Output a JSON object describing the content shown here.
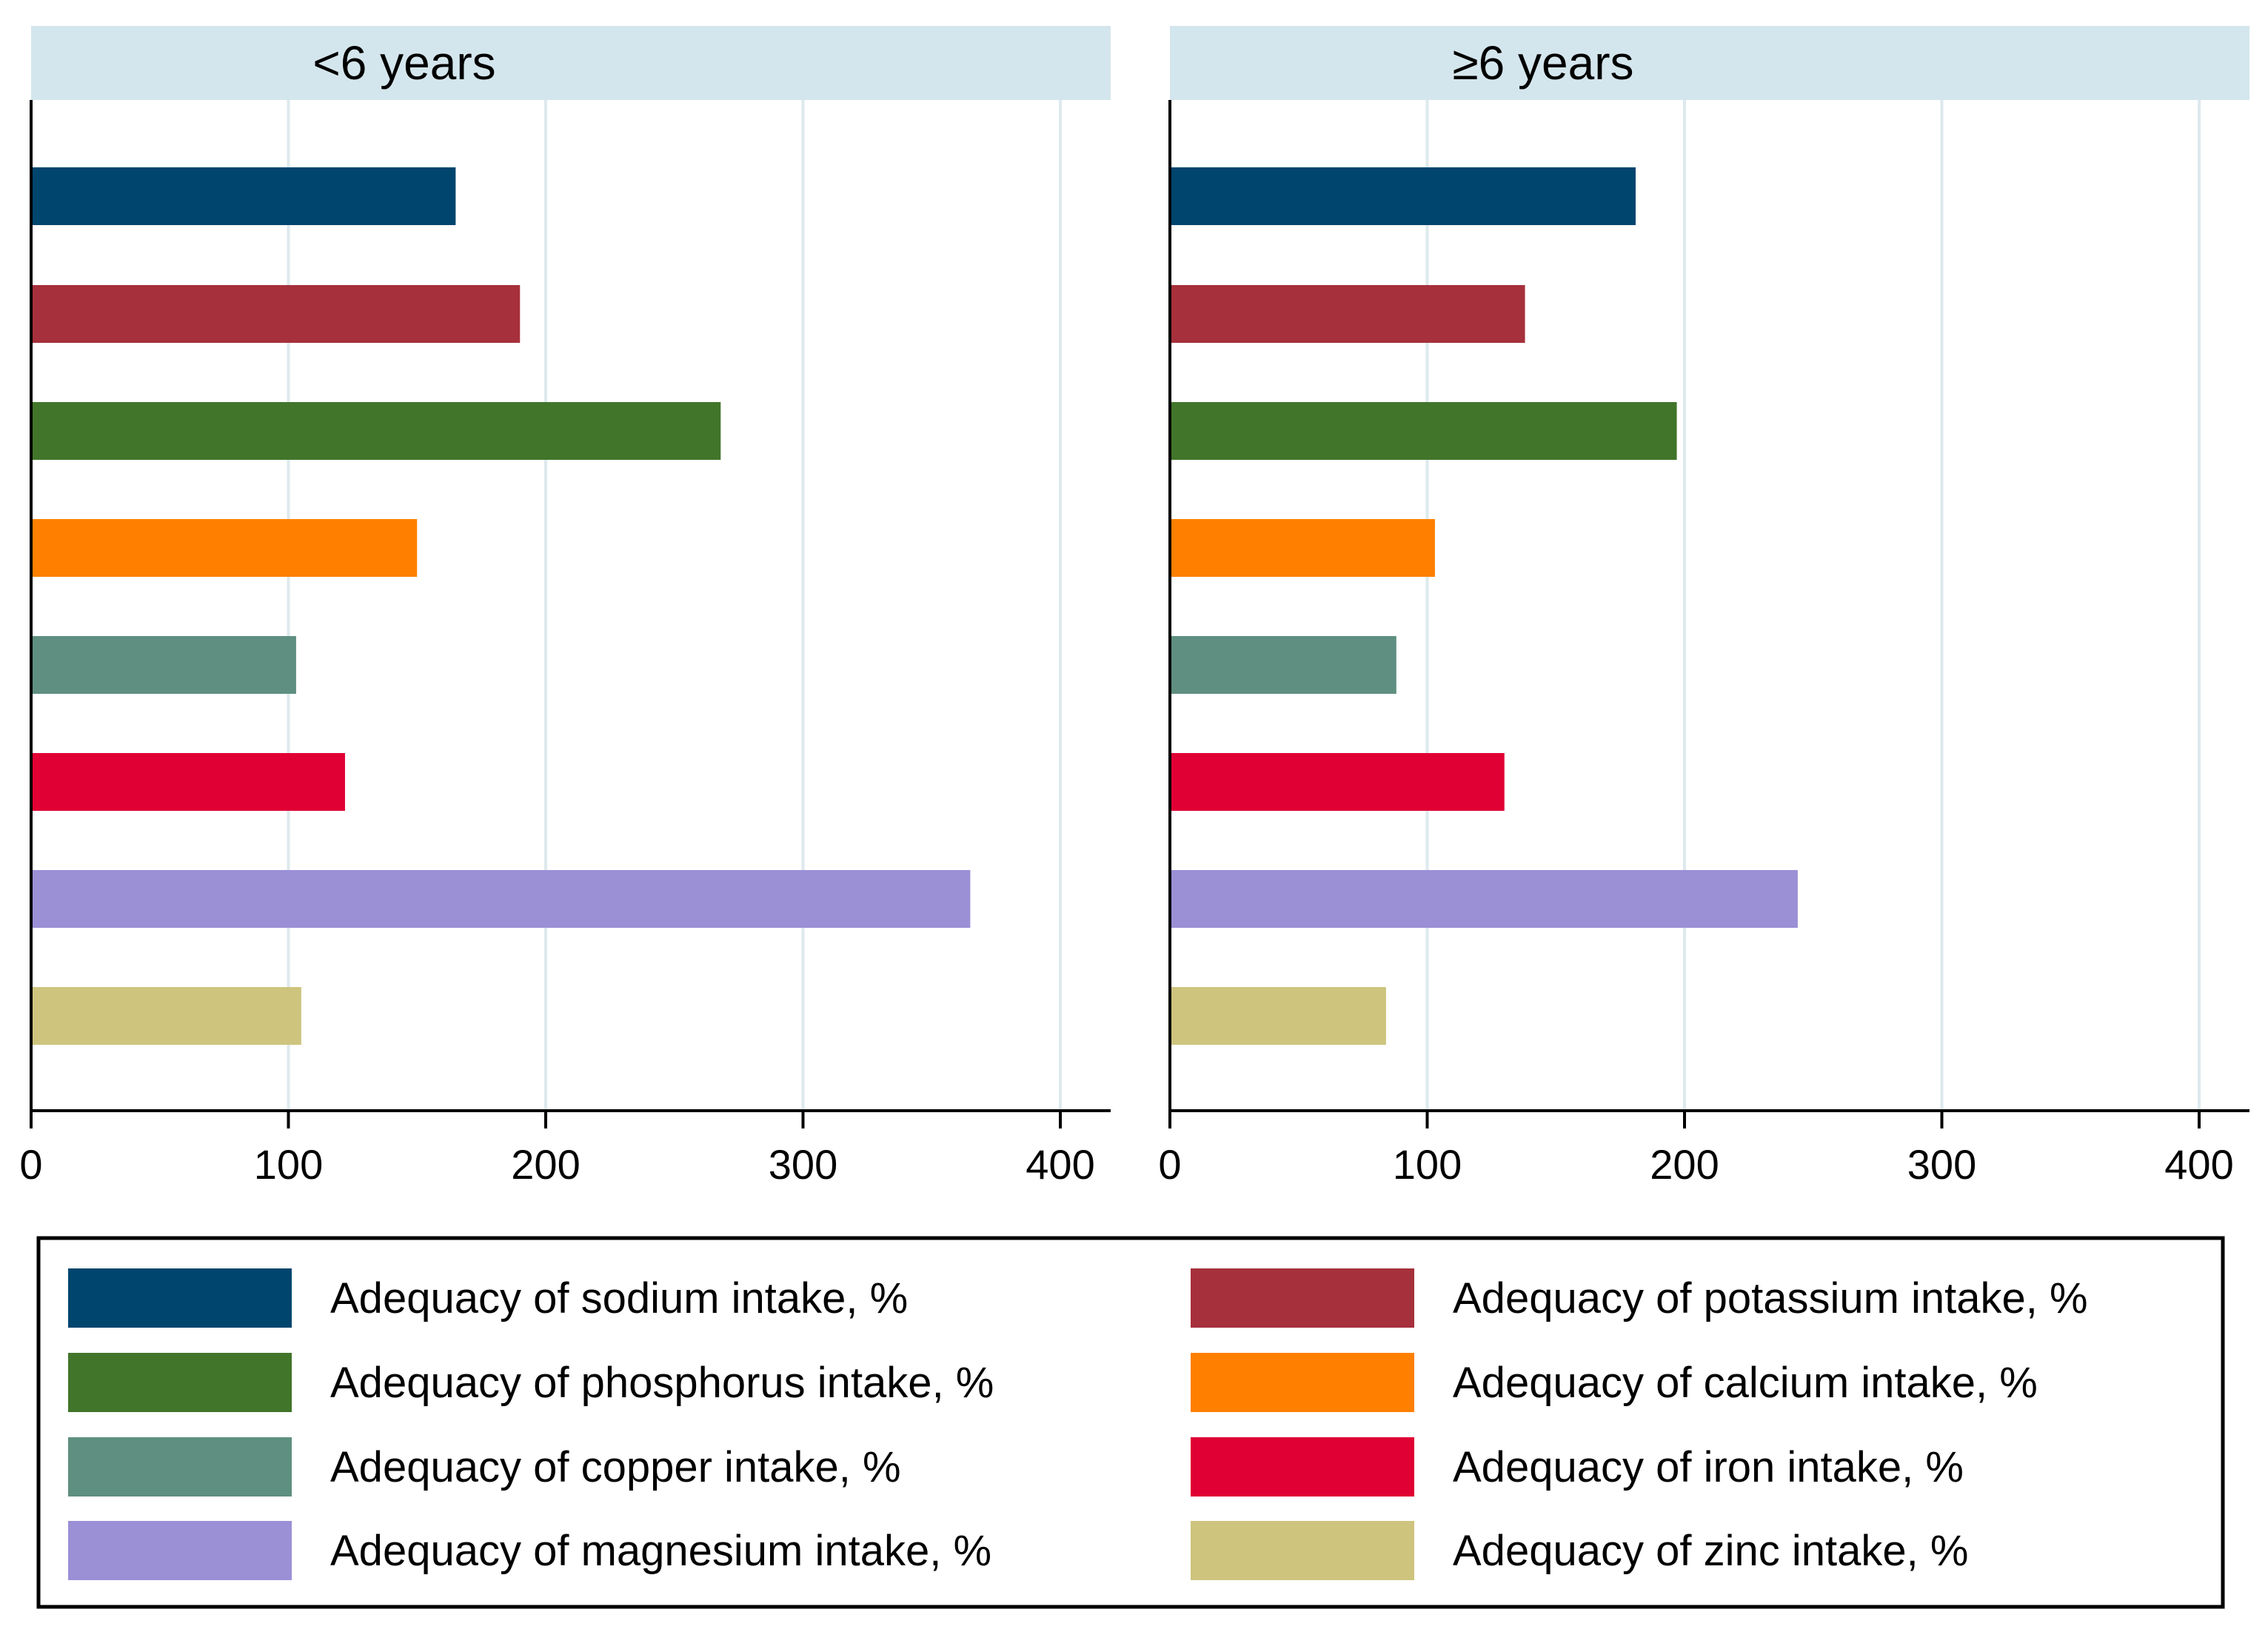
{
  "chart_data": {
    "type": "bar",
    "orientation": "horizontal",
    "value_unit": "%",
    "xlim": [
      0,
      420
    ],
    "xticks": [
      0,
      100,
      200,
      300,
      400
    ],
    "grid": true,
    "legend_position": "bottom",
    "series": [
      {
        "name": "Adequacy of sodium intake, %",
        "color": "#00456e"
      },
      {
        "name": "Adequacy of potassium intake, %",
        "color": "#a6303b"
      },
      {
        "name": "Adequacy of phosphorus intake, %",
        "color": "#41752a"
      },
      {
        "name": "Adequacy of calcium intake, %",
        "color": "#ff8000"
      },
      {
        "name": "Adequacy of copper intake, %",
        "color": "#5e8f80"
      },
      {
        "name": "Adequacy of iron intake, %",
        "color": "#e00034"
      },
      {
        "name": "Adequacy of magnesium intake, %",
        "color": "#9b8fd6"
      },
      {
        "name": "Adequacy of zinc intake, %",
        "color": "#cec47e"
      }
    ],
    "panels": [
      {
        "title": "<6 years",
        "values": [
          165,
          190,
          268,
          150,
          103,
          122,
          365,
          105
        ]
      },
      {
        "title": "≥6 years",
        "values": [
          181,
          138,
          197,
          103,
          88,
          130,
          244,
          84
        ]
      }
    ]
  }
}
